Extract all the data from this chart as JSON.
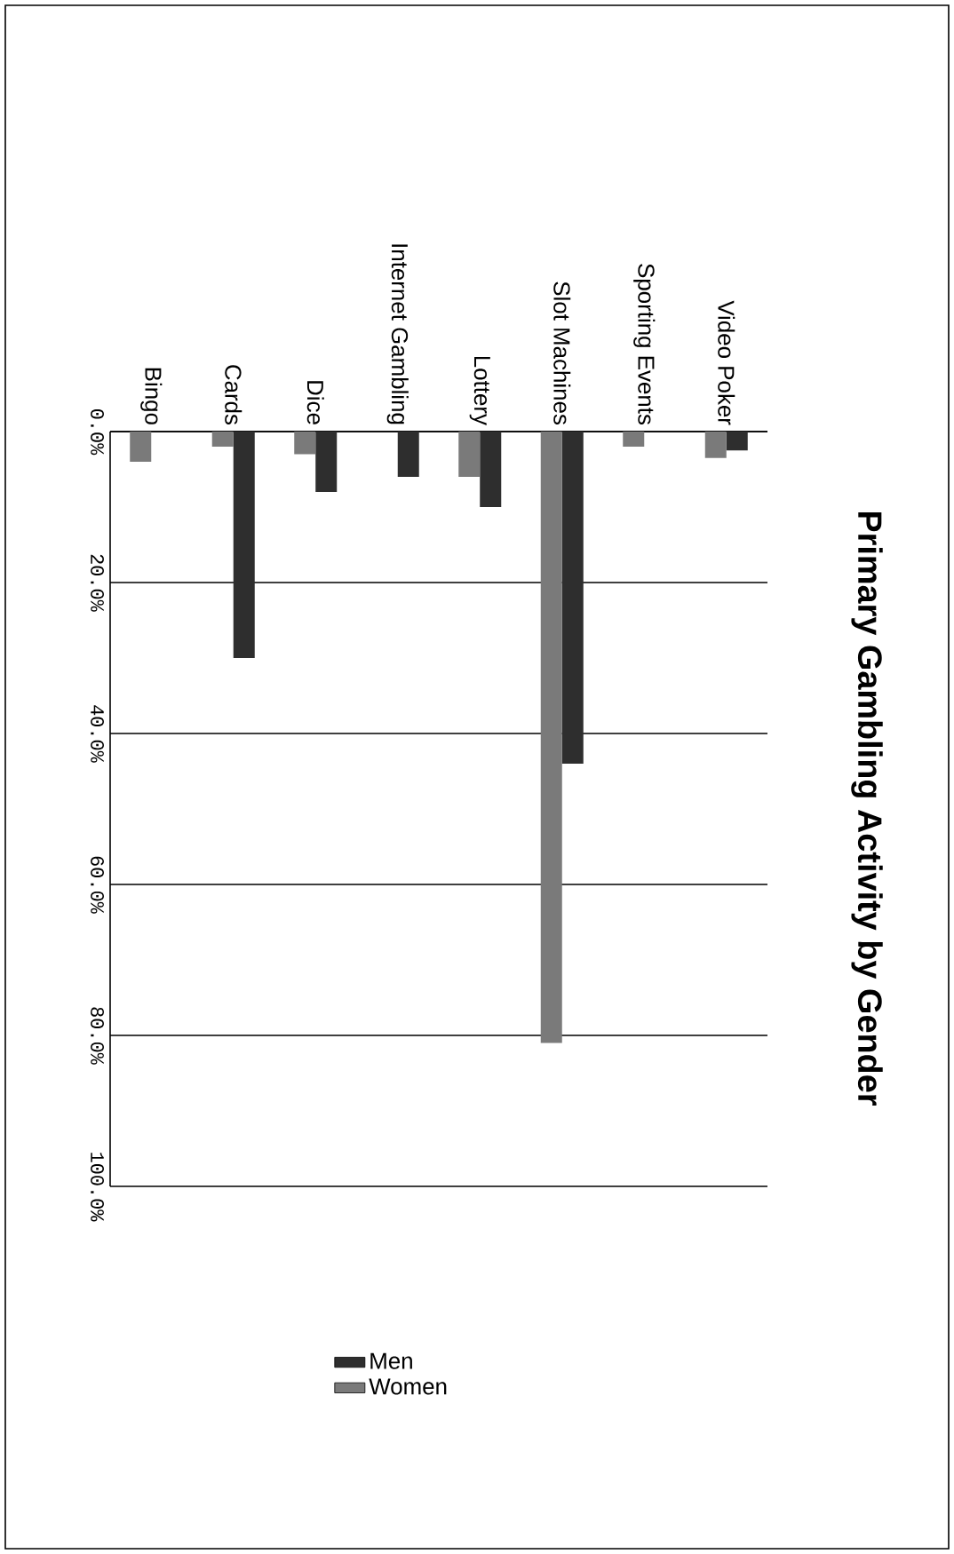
{
  "chart_data": {
    "type": "bar",
    "title": "Primary Gambling Activity by Gender",
    "categories": [
      "Bingo",
      "Cards",
      "Dice",
      "Internet Gambling",
      "Lottery",
      "Slot Machines",
      "Sporting Events",
      "Video Poker"
    ],
    "series": [
      {
        "name": "Men",
        "color": "#2e2e2e",
        "values": [
          0,
          30,
          8,
          6,
          10,
          44,
          0,
          2.5
        ]
      },
      {
        "name": "Women",
        "color": "#7a7a7a",
        "values": [
          4,
          2,
          3,
          0,
          6,
          81,
          2,
          3.5
        ]
      }
    ],
    "ylim": [
      100,
      0
    ],
    "yticks": [
      {
        "value": 0,
        "label": "0.0%"
      },
      {
        "value": 20,
        "label": "20.0%"
      },
      {
        "value": 40,
        "label": "40.0%"
      },
      {
        "value": 60,
        "label": "60.0%"
      },
      {
        "value": 80,
        "label": "80.0%"
      },
      {
        "value": 100,
        "label": "100.0%"
      }
    ],
    "grid": "y",
    "legend": "bottom"
  }
}
